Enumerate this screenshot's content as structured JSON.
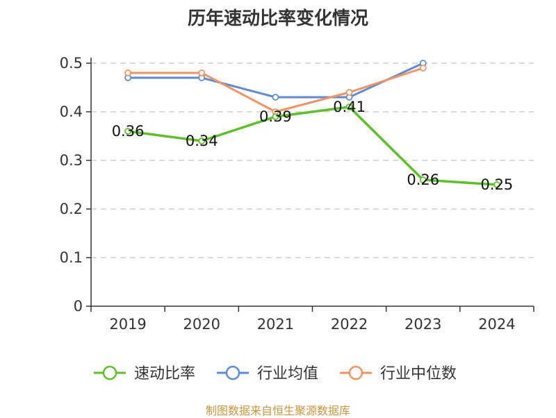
{
  "chart_data": {
    "type": "line",
    "title": "历年速动比率变化情况",
    "categories": [
      "2019",
      "2020",
      "2021",
      "2022",
      "2023",
      "2024"
    ],
    "ylim": [
      0,
      0.5
    ],
    "yticks": [
      "0",
      "0.1",
      "0.2",
      "0.3",
      "0.4",
      "0.5"
    ],
    "grid": true,
    "legend_position": "bottom",
    "series": [
      {
        "name": "速动比率",
        "color": "#5bc226",
        "values": [
          0.36,
          0.34,
          0.39,
          0.41,
          0.26,
          0.25
        ],
        "labels": [
          "0.36",
          "0.34",
          "0.39",
          "0.41",
          "0.26",
          "0.25"
        ]
      },
      {
        "name": "行业均值",
        "color": "#5b8bdb",
        "values": [
          0.47,
          0.47,
          0.43,
          0.43,
          0.5,
          null
        ]
      },
      {
        "name": "行业中位数",
        "color": "#f5925e",
        "values": [
          0.48,
          0.48,
          0.4,
          0.44,
          0.49,
          null
        ]
      }
    ]
  },
  "footer": {
    "source": "制图数据来自恒生聚源数据库"
  }
}
